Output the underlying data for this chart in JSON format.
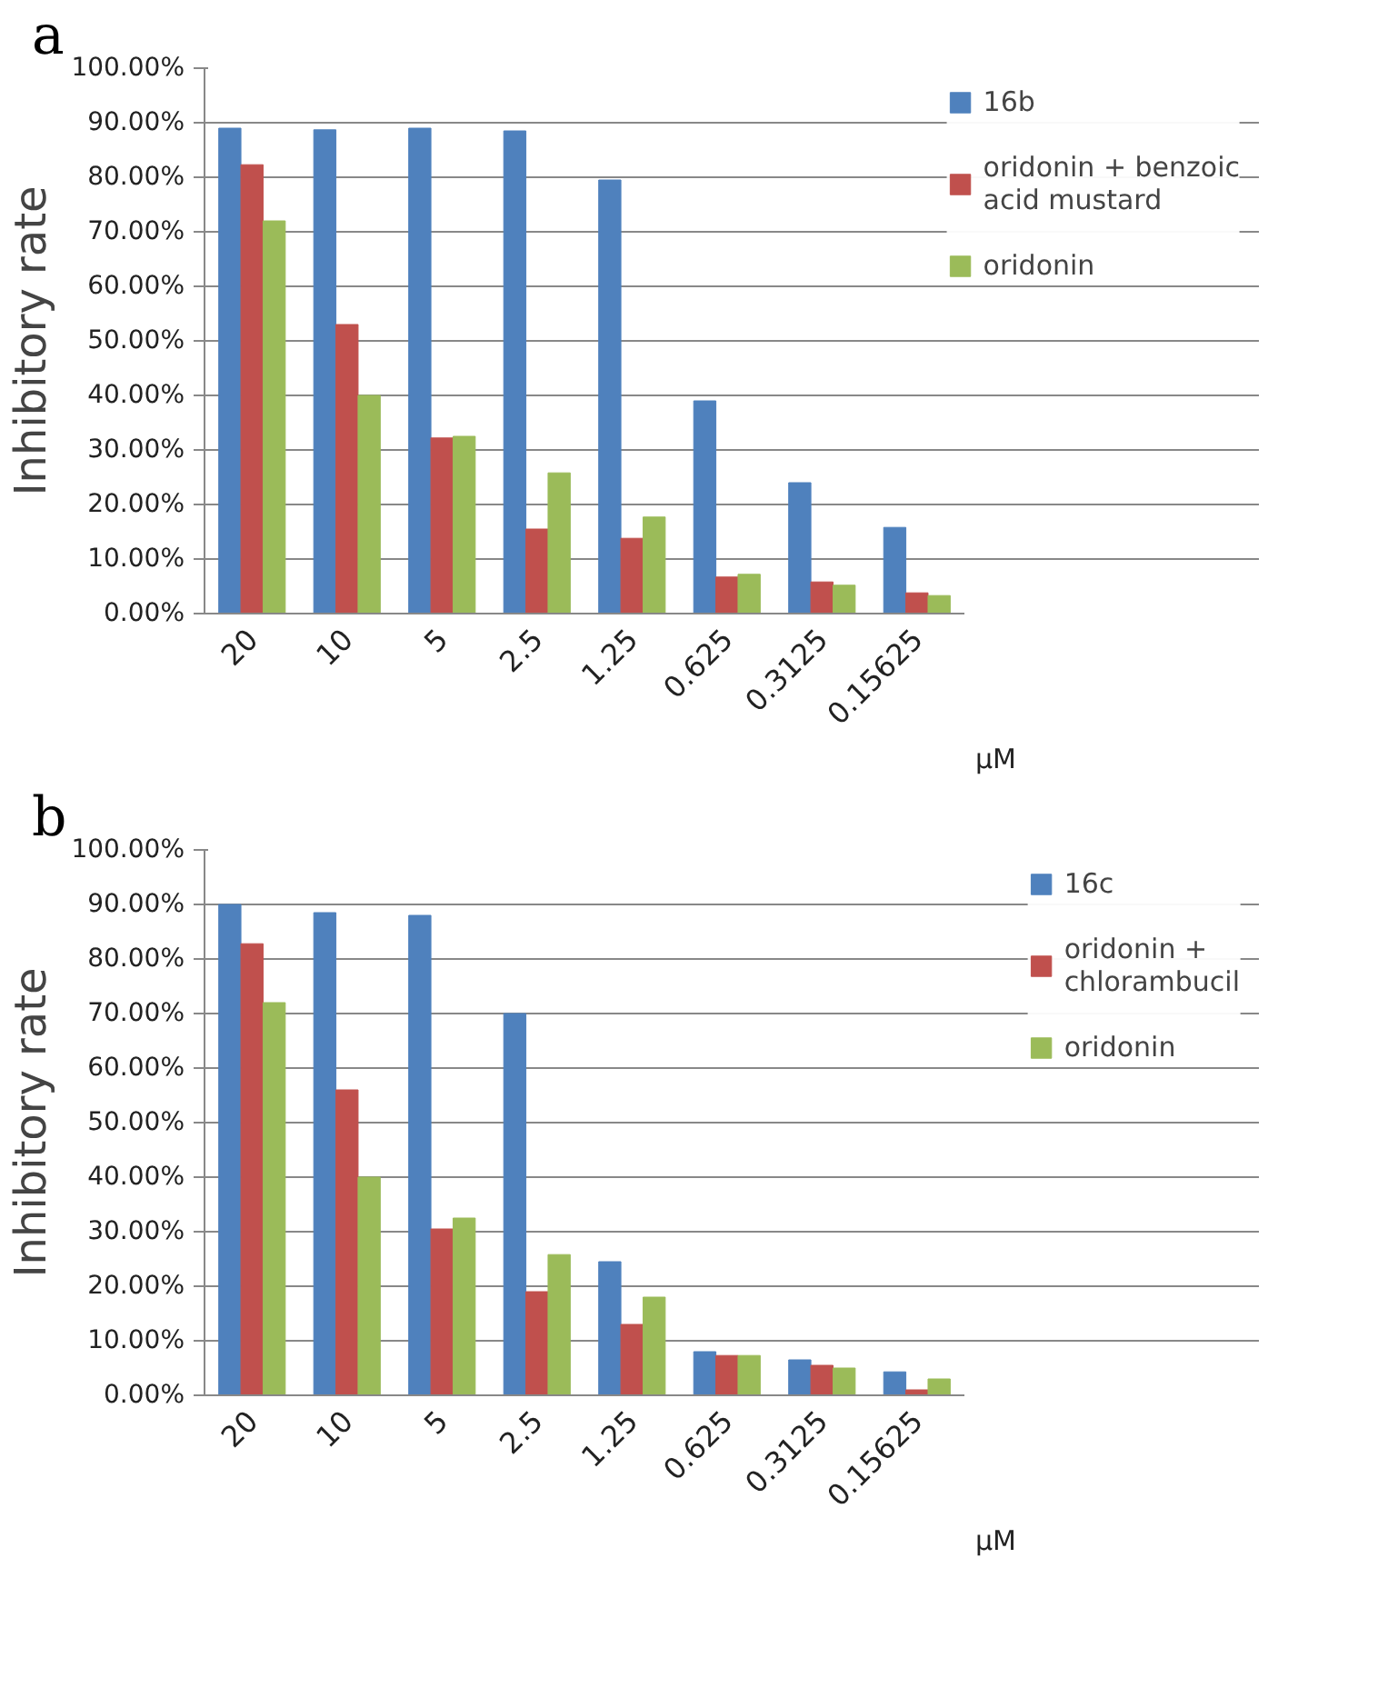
{
  "chart_data": [
    {
      "type": "bar",
      "annotations": [
        "a"
      ],
      "ylabel": "Inhibitory rate",
      "xlabel": "μM",
      "categories": [
        "20",
        "10",
        "5",
        "2.5",
        "1.25",
        "0.625",
        "0.3125",
        "0.15625"
      ],
      "series": [
        {
          "name": "16b",
          "color": "#4f81bd",
          "values": [
            89,
            88.7,
            89,
            88.5,
            79.5,
            39,
            24,
            15.8
          ]
        },
        {
          "name": "oridonin + benzoic acid mustard",
          "color": "#c0504d",
          "values": [
            82.3,
            53,
            32.2,
            15.5,
            13.8,
            6.7,
            5.8,
            3.8
          ]
        },
        {
          "name": "oridonin",
          "color": "#9bbb59",
          "values": [
            72,
            40,
            32.5,
            25.8,
            17.7,
            7.2,
            5.2,
            3.3
          ]
        }
      ],
      "ylim": [
        0,
        100
      ],
      "yticks": [
        {
          "value": 0,
          "label": "0.00%"
        },
        {
          "value": 10,
          "label": "10.00%"
        },
        {
          "value": 20,
          "label": "20.00%"
        },
        {
          "value": 30,
          "label": "30.00%"
        },
        {
          "value": 40,
          "label": "40.00%"
        },
        {
          "value": 50,
          "label": "50.00%"
        },
        {
          "value": 60,
          "label": "60.00%"
        },
        {
          "value": 70,
          "label": "70.00%"
        },
        {
          "value": 80,
          "label": "80.00%"
        },
        {
          "value": 90,
          "label": "90.00%"
        },
        {
          "value": 100,
          "label": "100.00%"
        }
      ],
      "grid": "y",
      "legend": "right"
    },
    {
      "type": "bar",
      "annotations": [
        "b"
      ],
      "ylabel": "Inhibitory rate",
      "xlabel": "μM",
      "categories": [
        "20",
        "10",
        "5",
        "2.5",
        "1.25",
        "0.625",
        "0.3125",
        "0.15625"
      ],
      "series": [
        {
          "name": "16c",
          "color": "#4f81bd",
          "values": [
            90,
            88.5,
            88,
            70,
            24.5,
            8,
            6.5,
            4.3
          ]
        },
        {
          "name": "oridonin + chlorambucil",
          "color": "#c0504d",
          "values": [
            82.8,
            56,
            30.5,
            19,
            13,
            7.3,
            5.5,
            1
          ]
        },
        {
          "name": "oridonin",
          "color": "#9bbb59",
          "values": [
            72,
            40,
            32.5,
            25.8,
            18,
            7.3,
            5,
            3
          ]
        }
      ],
      "ylim": [
        0,
        100
      ],
      "yticks": [
        {
          "value": 0,
          "label": "0.00%"
        },
        {
          "value": 10,
          "label": "10.00%"
        },
        {
          "value": 20,
          "label": "20.00%"
        },
        {
          "value": 30,
          "label": "30.00%"
        },
        {
          "value": 40,
          "label": "40.00%"
        },
        {
          "value": 50,
          "label": "50.00%"
        },
        {
          "value": 60,
          "label": "60.00%"
        },
        {
          "value": 70,
          "label": "70.00%"
        },
        {
          "value": 80,
          "label": "80.00%"
        },
        {
          "value": 90,
          "label": "90.00%"
        },
        {
          "value": 100,
          "label": "100.00%"
        }
      ],
      "grid": "y",
      "legend": "right"
    }
  ]
}
